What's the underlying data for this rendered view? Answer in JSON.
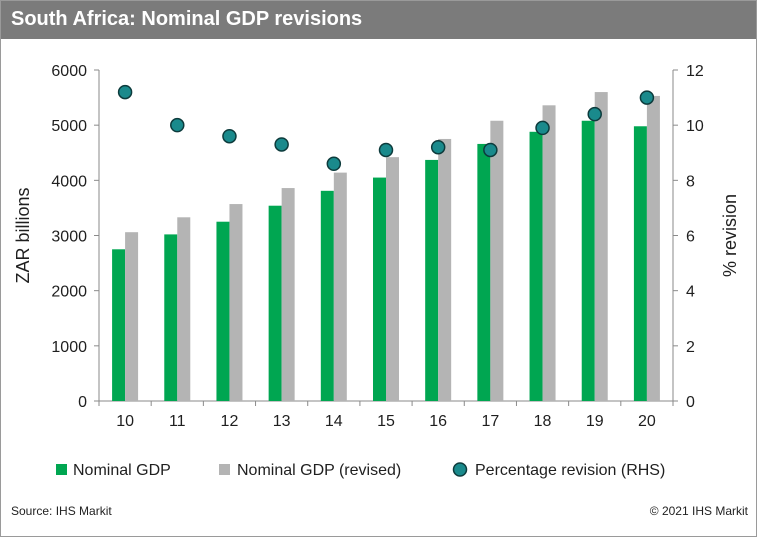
{
  "title": "South Africa: Nominal GDP revisions",
  "footer": {
    "source": "Source: IHS Markit",
    "copyright": "© 2021 IHS Markit"
  },
  "colors": {
    "title_bar": "#7b7b7b",
    "nominal_gdp": "#00a651",
    "nominal_gdp_revised": "#b4b4b4",
    "revision_marker": "#1a8a8c",
    "revision_marker_edge": "#0d3b3c"
  },
  "chart_data": {
    "type": "bar",
    "categories": [
      "10",
      "11",
      "12",
      "13",
      "14",
      "15",
      "16",
      "17",
      "18",
      "19",
      "20"
    ],
    "series": [
      {
        "name": "Nominal GDP",
        "type": "bar",
        "axis": "left",
        "values": [
          2750,
          3020,
          3250,
          3540,
          3810,
          4050,
          4370,
          4660,
          4880,
          5080,
          4980
        ]
      },
      {
        "name": "Nominal GDP (revised)",
        "type": "bar",
        "axis": "left",
        "values": [
          3060,
          3330,
          3570,
          3860,
          4140,
          4420,
          4750,
          5080,
          5360,
          5600,
          5530
        ]
      },
      {
        "name": "Percentage revision (RHS)",
        "type": "scatter",
        "axis": "right",
        "values": [
          11.2,
          10.0,
          9.6,
          9.3,
          8.6,
          9.1,
          9.2,
          9.1,
          9.9,
          10.4,
          11.0
        ]
      }
    ],
    "ylabel": "ZAR billions",
    "y2label": "% revision",
    "ylim": [
      0,
      6000
    ],
    "y2lim": [
      0,
      12
    ],
    "yticks": [
      "0",
      "1000",
      "2000",
      "3000",
      "4000",
      "5000",
      "6000"
    ],
    "y2ticks": [
      "0",
      "2",
      "4",
      "6",
      "8",
      "10",
      "12"
    ],
    "grid": false,
    "legend": "bottom"
  }
}
